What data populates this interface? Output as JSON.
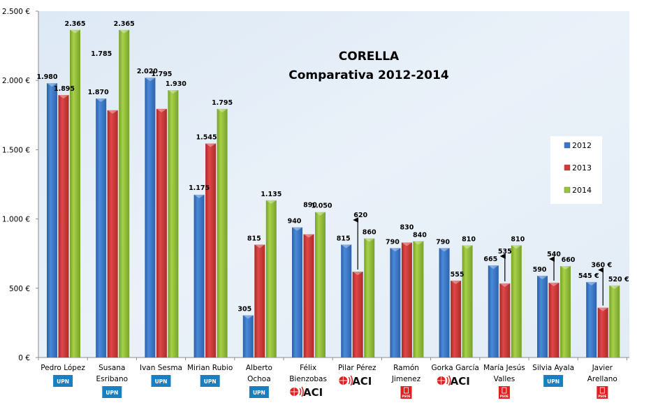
{
  "chart_data": {
    "type": "bar",
    "title": "CORELLA",
    "subtitle": "Comparativa 2012-2014",
    "xlabel": "",
    "ylabel": "",
    "ylim": [
      0,
      2500
    ],
    "yticks": [
      0,
      500,
      1000,
      1500,
      2000,
      2500
    ],
    "ytick_labels": [
      "0 €",
      "500 €",
      "1.000 €",
      "1.500 €",
      "2.000 €",
      "2.500 €"
    ],
    "grid": false,
    "legend_position": "right",
    "categories": [
      {
        "lines": [
          "Pedro López"
        ],
        "party": "UPN"
      },
      {
        "lines": [
          "Susana",
          "Esribano"
        ],
        "party": "UPN"
      },
      {
        "lines": [
          "Ivan Sesma"
        ],
        "party": "UPN"
      },
      {
        "lines": [
          "Mirian Rubio"
        ],
        "party": "UPN"
      },
      {
        "lines": [
          "Alberto",
          "Ochoa"
        ],
        "party": "UPN"
      },
      {
        "lines": [
          "Félix",
          "Bienzobas"
        ],
        "party": "ACI"
      },
      {
        "lines": [
          "Pilar Pérez"
        ],
        "party": "ACI"
      },
      {
        "lines": [
          "Ramón",
          "Jimenez"
        ],
        "party": "PSOE"
      },
      {
        "lines": [
          "Gorka García"
        ],
        "party": "ACI"
      },
      {
        "lines": [
          "María Jesús",
          "Valles"
        ],
        "party": "PSOE"
      },
      {
        "lines": [
          "Silvia Ayala"
        ],
        "party": "UPN"
      },
      {
        "lines": [
          "Javier",
          "Arellano"
        ],
        "party": "PSOE"
      }
    ],
    "series": [
      {
        "name": "2012",
        "color": "#3a78c8",
        "values": [
          1980,
          1870,
          2020,
          1175,
          305,
          940,
          815,
          790,
          790,
          665,
          590,
          545
        ],
        "labels": [
          "1.980",
          "1.870",
          "2.020",
          "1.175",
          "305",
          "940",
          "815",
          "790",
          "790",
          "665",
          "590",
          "545 €"
        ]
      },
      {
        "name": "2013",
        "color": "#d43c3c",
        "values": [
          1895,
          1785,
          1795,
          1545,
          815,
          890,
          620,
          830,
          555,
          535,
          540,
          360
        ],
        "labels": [
          "1.895",
          "1.785",
          "1.795",
          "1.545",
          "815",
          "890",
          "620",
          "830",
          "555",
          "535",
          "540",
          "360 €"
        ]
      },
      {
        "name": "2014",
        "color": "#9ac43c",
        "values": [
          2365,
          2365,
          1930,
          1795,
          1135,
          1050,
          860,
          840,
          810,
          810,
          660,
          520
        ],
        "labels": [
          "2.365",
          "2.365",
          "1.930",
          "1.795",
          "1.135",
          "1.050",
          "860",
          "840",
          "810",
          "810",
          "660",
          "520 €"
        ]
      }
    ],
    "annotations": [
      {
        "type": "arrow",
        "category_index": 6,
        "series": "2013",
        "note": "arrow pointing to label 620"
      },
      {
        "type": "arrow",
        "category_index": 9,
        "series": "2013",
        "note": "arrow pointing to label 535"
      },
      {
        "type": "arrow",
        "category_index": 10,
        "series": "2013",
        "note": "arrow pointing to label 540"
      },
      {
        "type": "arrow",
        "category_index": 11,
        "series": "2013",
        "note": "arrow pointing to label 360 €"
      }
    ]
  },
  "party_logos": {
    "UPN": {
      "text": "UPN",
      "color": "#1a7fc0"
    },
    "ACI": {
      "text": "ACI",
      "color": "#e02020"
    },
    "PSOE": {
      "text": "PSOE",
      "color": "#e02020"
    }
  }
}
